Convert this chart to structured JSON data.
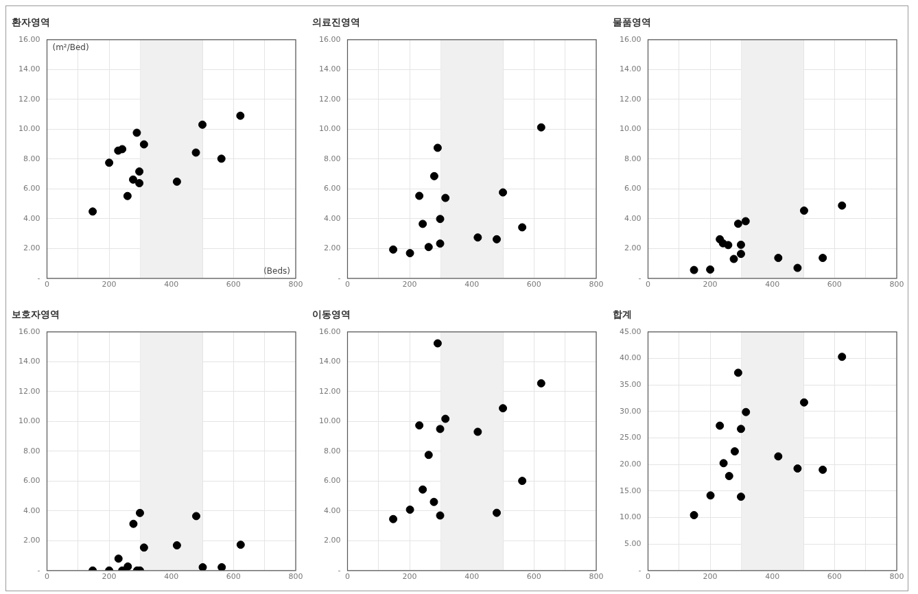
{
  "chart_data": [
    {
      "type": "scatter",
      "title": "환자영역",
      "annotations": [
        "(m²/Bed)",
        "(Beds)"
      ],
      "marker": "circle",
      "grid": true,
      "legend": false,
      "xlim": [
        0,
        800
      ],
      "ylim": [
        0,
        16
      ],
      "xticks": [
        0,
        {
          "value": 100,
          "label": null
        },
        200,
        {
          "value": 300,
          "label": null
        },
        400,
        {
          "value": 500,
          "label": null
        },
        600,
        {
          "value": 700,
          "label": null
        },
        800
      ],
      "yticks": [
        {
          "value": 0,
          "label": "-"
        },
        {
          "value": 2,
          "label": "2.00"
        },
        {
          "value": 4,
          "label": "4.00"
        },
        {
          "value": 6,
          "label": "6.00"
        },
        {
          "value": 8,
          "label": "8.00"
        },
        {
          "value": 10,
          "label": "10.00"
        },
        {
          "value": 12,
          "label": "12.00"
        },
        {
          "value": 14,
          "label": "14.00"
        },
        {
          "value": 16,
          "label": "16.00"
        }
      ],
      "bands": [
        {
          "axis": "x",
          "from": 300,
          "to": 500,
          "color": "#f0f0f0"
        }
      ],
      "series": [
        {
          "color": "#000000",
          "x": [
            147,
            200,
            229,
            242,
            259,
            277,
            289,
            297,
            297,
            312,
            418,
            479,
            500,
            561,
            622
          ],
          "values": [
            4.48,
            7.75,
            8.56,
            8.66,
            5.52,
            6.62,
            9.76,
            7.16,
            6.38,
            8.98,
            6.48,
            8.43,
            10.3,
            8.02,
            10.9
          ]
        }
      ]
    },
    {
      "type": "scatter",
      "title": "의료진영역",
      "marker": "circle",
      "grid": true,
      "legend": false,
      "xlim": [
        0,
        800
      ],
      "ylim": [
        0,
        16
      ],
      "xticks": [
        0,
        {
          "value": 100,
          "label": null
        },
        200,
        {
          "value": 300,
          "label": null
        },
        400,
        {
          "value": 500,
          "label": null
        },
        600,
        {
          "value": 700,
          "label": null
        },
        800
      ],
      "yticks": [
        {
          "value": 0,
          "label": "-"
        },
        {
          "value": 2,
          "label": "2.00"
        },
        {
          "value": 4,
          "label": "4.00"
        },
        {
          "value": 6,
          "label": "6.00"
        },
        {
          "value": 8,
          "label": "8.00"
        },
        {
          "value": 10,
          "label": "10.00"
        },
        {
          "value": 12,
          "label": "12.00"
        },
        {
          "value": 14,
          "label": "14.00"
        },
        {
          "value": 16,
          "label": "16.00"
        }
      ],
      "bands": [
        {
          "axis": "x",
          "from": 300,
          "to": 500,
          "color": "#f0f0f0"
        }
      ],
      "series": [
        {
          "color": "#000000",
          "x": [
            147,
            201,
            231,
            242,
            261,
            279,
            290,
            298,
            298,
            315,
            419,
            480,
            500,
            562,
            623
          ],
          "values": [
            1.93,
            1.69,
            5.53,
            3.65,
            2.1,
            6.85,
            8.75,
            3.98,
            2.33,
            5.39,
            2.74,
            2.62,
            5.76,
            3.42,
            10.12
          ]
        }
      ]
    },
    {
      "type": "scatter",
      "title": "물품영역",
      "marker": "circle",
      "grid": true,
      "legend": false,
      "xlim": [
        0,
        800
      ],
      "ylim": [
        0,
        16
      ],
      "xticks": [
        0,
        {
          "value": 100,
          "label": null
        },
        200,
        {
          "value": 300,
          "label": null
        },
        400,
        {
          "value": 500,
          "label": null
        },
        600,
        {
          "value": 700,
          "label": null
        },
        800
      ],
      "yticks": [
        {
          "value": 0,
          "label": "-"
        },
        {
          "value": 2,
          "label": "2.00"
        },
        {
          "value": 4,
          "label": "4.00"
        },
        {
          "value": 6,
          "label": "6.00"
        },
        {
          "value": 8,
          "label": "8.00"
        },
        {
          "value": 10,
          "label": "10.00"
        },
        {
          "value": 12,
          "label": "12.00"
        },
        {
          "value": 14,
          "label": "14.00"
        },
        {
          "value": 16,
          "label": "16.00"
        }
      ],
      "bands": [
        {
          "axis": "x",
          "from": 300,
          "to": 500,
          "color": "#f0f0f0"
        }
      ],
      "series": [
        {
          "color": "#000000",
          "x": [
            148,
            200,
            231,
            241,
            258,
            276,
            290,
            299,
            299,
            314,
            419,
            481,
            502,
            562,
            624
          ],
          "values": [
            0.56,
            0.59,
            2.62,
            2.35,
            2.23,
            1.3,
            3.66,
            2.25,
            1.64,
            3.83,
            1.37,
            0.7,
            4.54,
            1.37,
            4.88
          ]
        }
      ]
    },
    {
      "type": "scatter",
      "title": "보호자영역",
      "marker": "circle",
      "grid": true,
      "legend": false,
      "xlim": [
        0,
        800
      ],
      "ylim": [
        0,
        16
      ],
      "xticks": [
        0,
        {
          "value": 100,
          "label": null
        },
        200,
        {
          "value": 300,
          "label": null
        },
        400,
        {
          "value": 500,
          "label": null
        },
        600,
        {
          "value": 700,
          "label": null
        },
        800
      ],
      "yticks": [
        {
          "value": 0,
          "label": "-"
        },
        {
          "value": 2,
          "label": "2.00"
        },
        {
          "value": 4,
          "label": "4.00"
        },
        {
          "value": 6,
          "label": "6.00"
        },
        {
          "value": 8,
          "label": "8.00"
        },
        {
          "value": 10,
          "label": "10.00"
        },
        {
          "value": 12,
          "label": "12.00"
        },
        {
          "value": 14,
          "label": "14.00"
        },
        {
          "value": 16,
          "label": "16.00"
        }
      ],
      "bands": [
        {
          "axis": "x",
          "from": 300,
          "to": 500,
          "color": "#f0f0f0"
        }
      ],
      "series": [
        {
          "color": "#000000",
          "x": [
            147,
            200,
            230,
            242,
            260,
            278,
            290,
            299,
            299,
            312,
            418,
            480,
            501,
            562,
            623
          ],
          "values": [
            0,
            0,
            0.8,
            0,
            0.27,
            3.13,
            0,
            3.86,
            0,
            1.54,
            1.69,
            3.65,
            0.22,
            0.22,
            1.73
          ]
        }
      ]
    },
    {
      "type": "scatter",
      "title": "이동영역",
      "marker": "circle",
      "grid": true,
      "legend": false,
      "xlim": [
        0,
        800
      ],
      "ylim": [
        0,
        16
      ],
      "xticks": [
        0,
        {
          "value": 100,
          "label": null
        },
        200,
        {
          "value": 300,
          "label": null
        },
        400,
        {
          "value": 500,
          "label": null
        },
        600,
        {
          "value": 700,
          "label": null
        },
        800
      ],
      "yticks": [
        {
          "value": 0,
          "label": "-"
        },
        {
          "value": 2,
          "label": "2.00"
        },
        {
          "value": 4,
          "label": "4.00"
        },
        {
          "value": 6,
          "label": "6.00"
        },
        {
          "value": 8,
          "label": "8.00"
        },
        {
          "value": 10,
          "label": "10.00"
        },
        {
          "value": 12,
          "label": "12.00"
        },
        {
          "value": 14,
          "label": "14.00"
        },
        {
          "value": 16,
          "label": "16.00"
        }
      ],
      "bands": [
        {
          "axis": "x",
          "from": 300,
          "to": 500,
          "color": "#f0f0f0"
        }
      ],
      "series": [
        {
          "color": "#000000",
          "x": [
            147,
            201,
            231,
            242,
            261,
            278,
            290,
            298,
            298,
            315,
            419,
            480,
            500,
            562,
            623
          ],
          "values": [
            3.45,
            4.08,
            9.73,
            5.43,
            7.75,
            4.6,
            15.23,
            9.49,
            3.69,
            10.17,
            9.3,
            3.87,
            10.88,
            6.01,
            12.55
          ]
        }
      ]
    },
    {
      "type": "scatter",
      "title": "합계",
      "marker": "circle",
      "grid": true,
      "legend": false,
      "xlim": [
        0,
        800
      ],
      "ylim": [
        0,
        45
      ],
      "xticks": [
        0,
        {
          "value": 100,
          "label": null
        },
        200,
        {
          "value": 300,
          "label": null
        },
        400,
        {
          "value": 500,
          "label": null
        },
        600,
        {
          "value": 700,
          "label": null
        },
        800
      ],
      "yticks": [
        {
          "value": 0,
          "label": "-"
        },
        {
          "value": 5,
          "label": "5.00"
        },
        {
          "value": 10,
          "label": "10.00"
        },
        {
          "value": 15,
          "label": "15.00"
        },
        {
          "value": 20,
          "label": "20.00"
        },
        {
          "value": 25,
          "label": "25.00"
        },
        {
          "value": 30,
          "label": "30.00"
        },
        {
          "value": 35,
          "label": "35.00"
        },
        {
          "value": 40,
          "label": "40.00"
        },
        {
          "value": 45,
          "label": "45.00"
        }
      ],
      "bands": [
        {
          "axis": "x",
          "from": 300,
          "to": 500,
          "color": "#f0f0f0"
        }
      ],
      "series": [
        {
          "color": "#000000",
          "x": [
            148,
            201,
            231,
            243,
            261,
            279,
            290,
            299,
            299,
            315,
            419,
            481,
            502,
            562,
            624
          ],
          "values": [
            10.45,
            14.16,
            27.31,
            20.24,
            17.82,
            22.47,
            37.29,
            26.7,
            13.92,
            29.88,
            21.52,
            19.24,
            31.69,
            19.0,
            40.29
          ]
        }
      ]
    }
  ]
}
